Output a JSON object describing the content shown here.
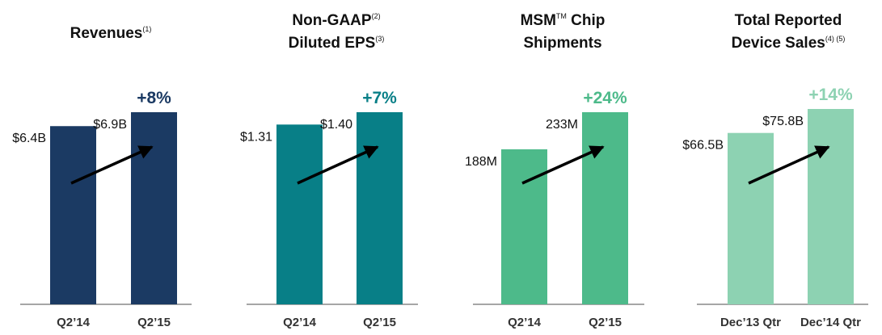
{
  "chart_data": [
    {
      "type": "bar",
      "title": "Revenues",
      "title_note": "(1)",
      "categories": [
        "Q2’14",
        "Q2’15"
      ],
      "values": [
        6.4,
        6.9
      ],
      "value_labels": [
        "$6.4B",
        "$6.9B"
      ],
      "change_label": "+8%",
      "bar_color": "#1b3a63",
      "change_color": "#1b3a63"
    },
    {
      "type": "bar",
      "title_line1": "Non-GAAP",
      "title_line1_note": "(2)",
      "title_line2": "Diluted EPS",
      "title_line2_note": "(3)",
      "categories": [
        "Q2’14",
        "Q2’15"
      ],
      "values": [
        1.31,
        1.4
      ],
      "value_labels": [
        "$1.31",
        "$1.40"
      ],
      "change_label": "+7%",
      "bar_color": "#087f87",
      "change_color": "#087f87"
    },
    {
      "type": "bar",
      "title_line1": "MSM",
      "title_line1_tm": "TM",
      "title_line1_rest": " Chip",
      "title_line2": "Shipments",
      "categories": [
        "Q2’14",
        "Q2’15"
      ],
      "values": [
        188,
        233
      ],
      "value_labels": [
        "188M",
        "233M"
      ],
      "change_label": "+24%",
      "bar_color": "#4dba8a",
      "change_color": "#4dba8a"
    },
    {
      "type": "bar",
      "title_line1": "Total Reported",
      "title_line2": "Device Sales",
      "title_line2_note": "(4) (5)",
      "categories": [
        "Dec’13 Qtr",
        "Dec’14 Qtr"
      ],
      "values": [
        66.5,
        75.8
      ],
      "value_labels": [
        "$66.5B",
        "$75.8B"
      ],
      "change_label": "+14%",
      "bar_color": "#8dd2b2",
      "change_color": "#8dd2b2"
    }
  ]
}
